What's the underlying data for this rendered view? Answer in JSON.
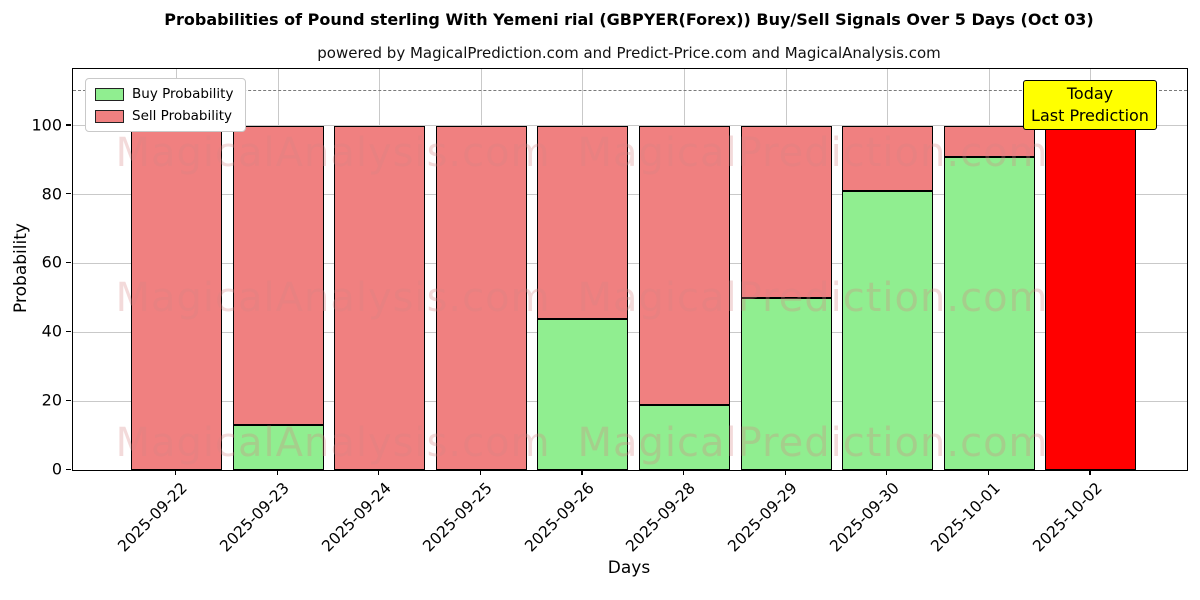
{
  "chart_data": {
    "type": "bar",
    "stacked": true,
    "title": "Probabilities of Pound sterling With Yemeni rial (GBPYER(Forex)) Buy/Sell Signals Over 5 Days (Oct 03)",
    "subtitle": "powered by MagicalPrediction.com and Predict-Price.com and MagicalAnalysis.com",
    "xlabel": "Days",
    "ylabel": "Probability",
    "categories": [
      "2025-09-22",
      "2025-09-23",
      "2025-09-24",
      "2025-09-25",
      "2025-09-26",
      "2025-09-28",
      "2025-09-29",
      "2025-09-30",
      "2025-10-01",
      "2025-10-02"
    ],
    "series": [
      {
        "name": "Buy Probability",
        "color": "#90ee90",
        "values": [
          0,
          13,
          0,
          0,
          44,
          19,
          50,
          81,
          91,
          0
        ]
      },
      {
        "name": "Sell Probability",
        "color": "#f08080",
        "values": [
          100,
          87,
          100,
          100,
          56,
          81,
          50,
          19,
          9,
          100
        ]
      }
    ],
    "today_bar": {
      "index": 9,
      "color": "#ff0000",
      "annotation": [
        "Today",
        "Last Prediction"
      ],
      "annotation_bg": "#ffff00"
    },
    "ylim": [
      0,
      116.5
    ],
    "yticks": [
      0,
      20,
      40,
      60,
      80,
      100
    ],
    "dashed_line_y": 110,
    "grid": "on",
    "legend_position": "upper left",
    "bar_edge_color": "#000000",
    "watermarks": {
      "left_text": "MagicalAnalysis.com",
      "right_text": "MagicalPrediction.com",
      "rows": 3
    }
  }
}
